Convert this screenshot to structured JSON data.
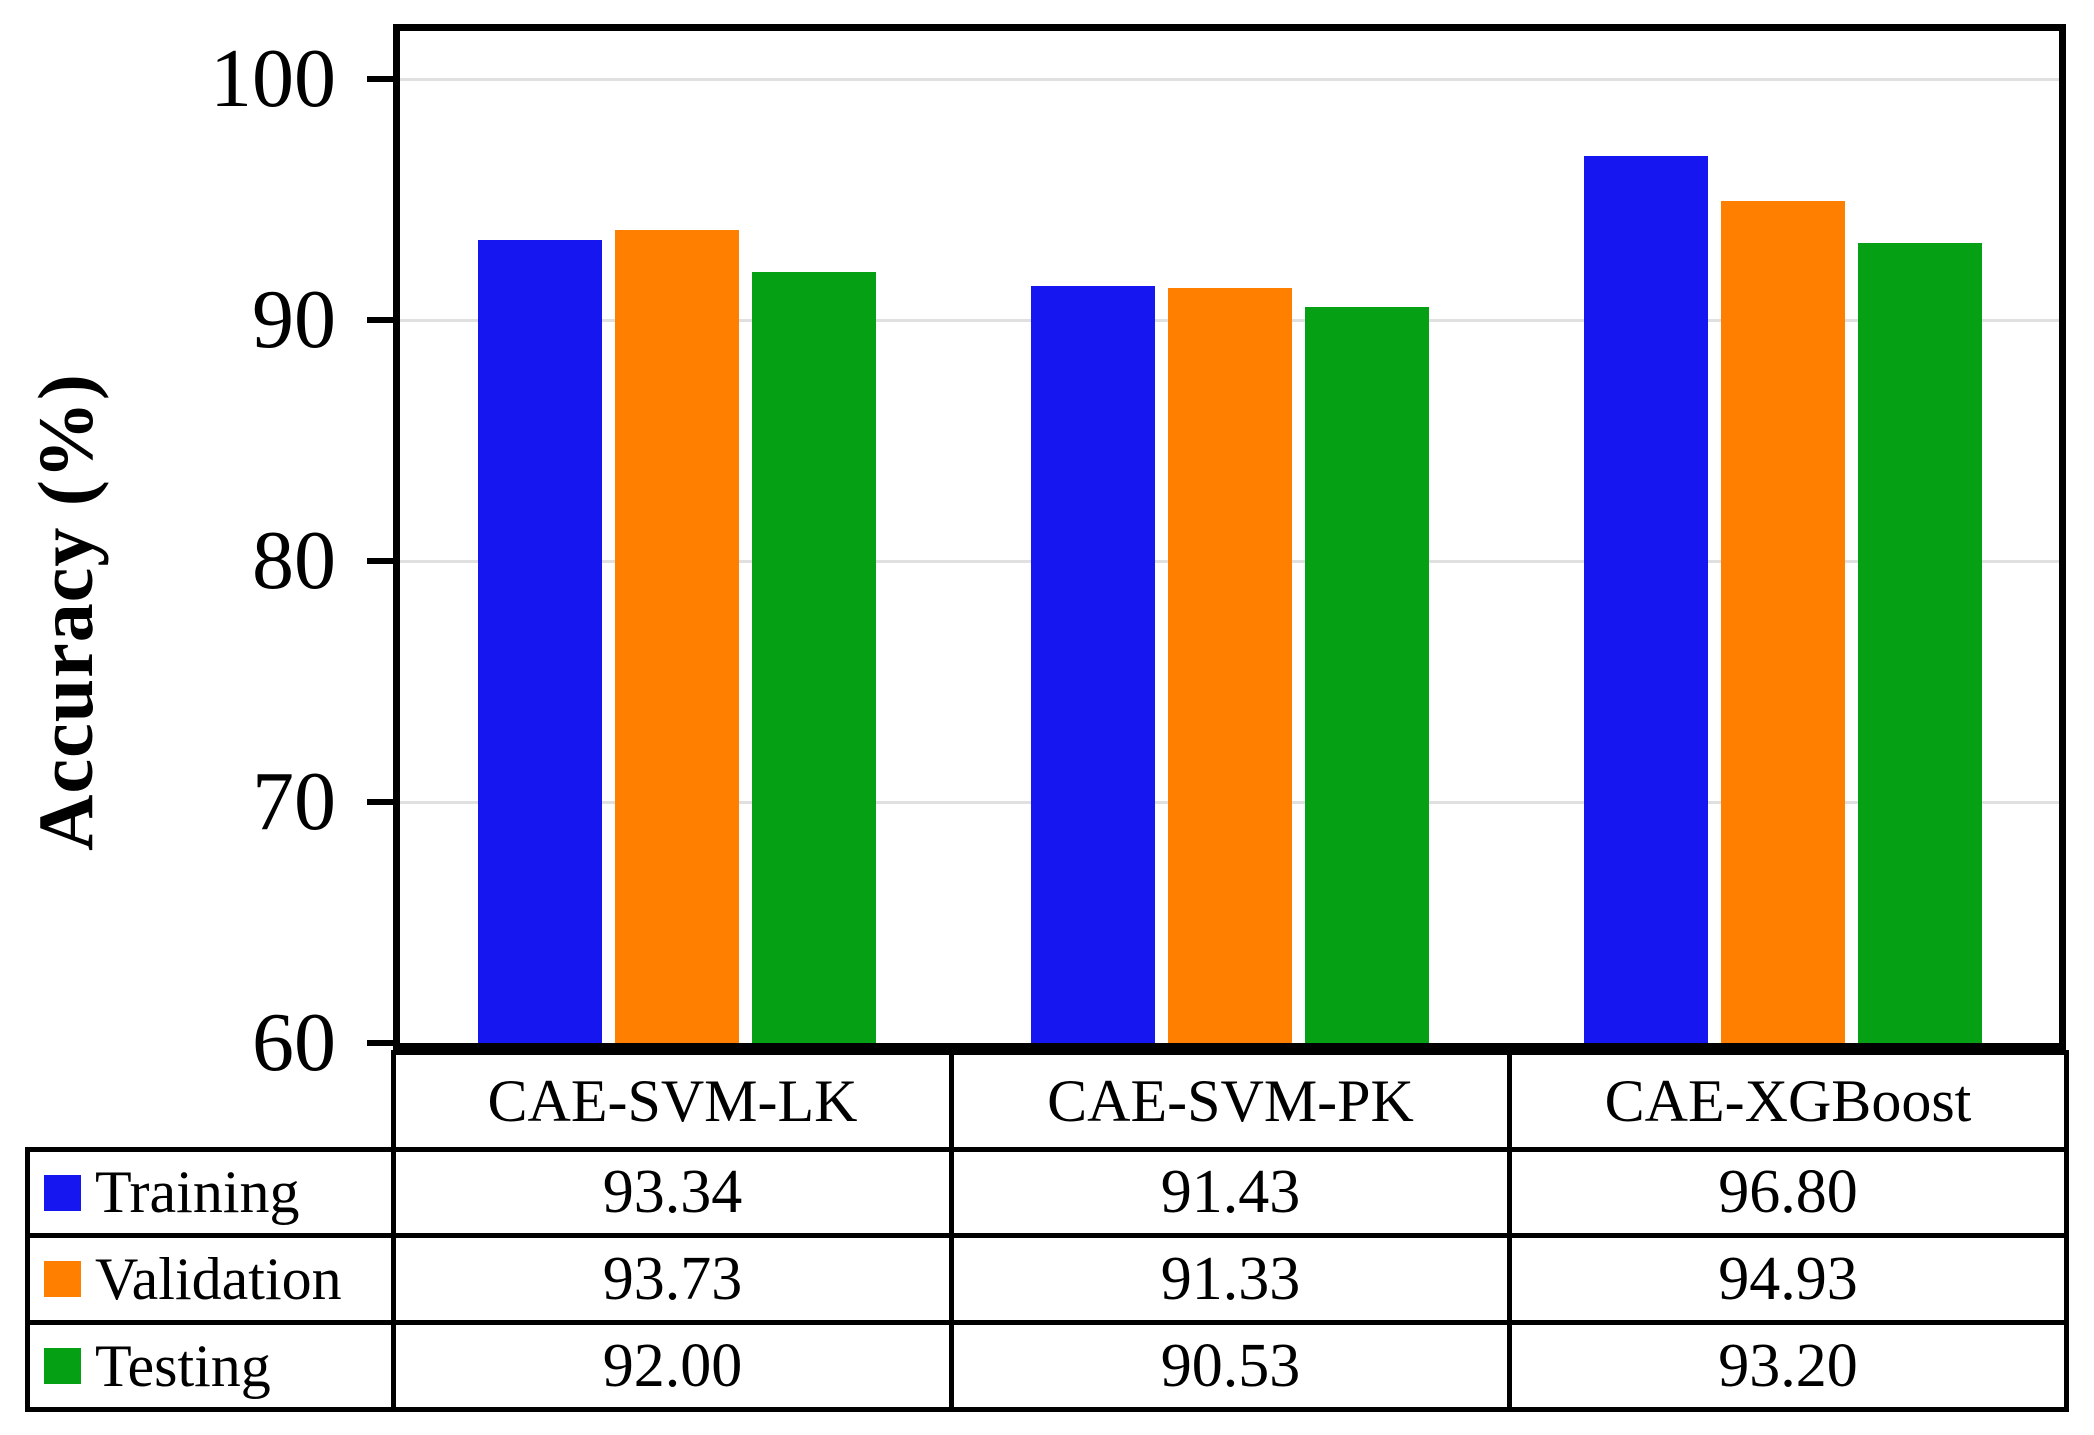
{
  "chart_data": {
    "type": "bar",
    "title": "",
    "ylabel": "Accuracy (%)",
    "xlabel": "",
    "categories": [
      "CAE-SVM-LK",
      "CAE-SVM-PK",
      "CAE-XGBoost"
    ],
    "series": [
      {
        "name": "Training",
        "color": "#1616f0",
        "values": [
          93.34,
          91.43,
          96.8
        ]
      },
      {
        "name": "Validation",
        "color": "#ff8000",
        "values": [
          93.73,
          91.33,
          94.93
        ]
      },
      {
        "name": "Testing",
        "color": "#05a014",
        "values": [
          92.0,
          90.53,
          93.2
        ]
      }
    ],
    "ylim": [
      60,
      102
    ],
    "yticks": [
      60,
      70,
      80,
      90,
      100
    ],
    "grid": true,
    "legend_position": "table-left",
    "value_decimals": 2
  },
  "colors": {
    "axis_border": "#000000",
    "gridline": "#e0e0e0",
    "background": "#ffffff",
    "text": "#000000"
  }
}
